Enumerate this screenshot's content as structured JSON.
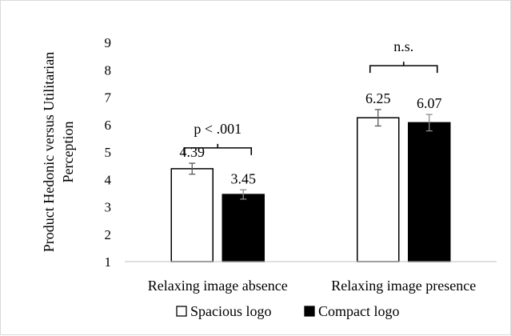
{
  "chart_data": {
    "type": "bar",
    "title": "",
    "xlabel": "",
    "ylabel": "Product Hedonic versus Utilitarian Perception",
    "ylabel_lines": [
      "Product Hedonic versus Utilitarian",
      "Perception"
    ],
    "ylim": [
      1,
      9
    ],
    "yticks": [
      "1",
      "2",
      "3",
      "4",
      "5",
      "6",
      "7",
      "8",
      "9"
    ],
    "grid": false,
    "legend_position": "bottom",
    "categories": [
      "Relaxing image absence",
      "Relaxing image presence"
    ],
    "series": [
      {
        "name": "Spacious logo",
        "fill": "#ffffff",
        "stroke": "#000000",
        "values": [
          4.39,
          6.25
        ],
        "labels": [
          "4.39",
          "6.25"
        ],
        "error": [
          0.2,
          0.3
        ]
      },
      {
        "name": "Compact logo",
        "fill": "#000000",
        "stroke": "#000000",
        "values": [
          3.45,
          6.07
        ],
        "labels": [
          "3.45",
          "6.07"
        ],
        "error": [
          0.17,
          0.3
        ]
      }
    ],
    "annotations": [
      {
        "category_index": 0,
        "text": "p < .001",
        "bracket_y": 5.15,
        "text_y": 5.85
      },
      {
        "category_index": 1,
        "text": "n.s.",
        "bracket_y": 8.15,
        "text_y": 8.85
      }
    ]
  }
}
